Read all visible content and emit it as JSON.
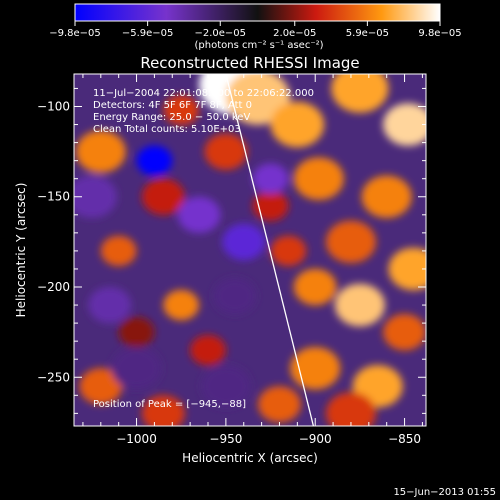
{
  "chart_data": {
    "type": "heatmap",
    "title": "Reconstructed RHESSI Image",
    "xlabel": "Heliocentric X (arcsec)",
    "ylabel": "Heliocentric Y (arcsec)",
    "xlim": [
      -1035,
      -838
    ],
    "ylim": [
      -277,
      -82
    ],
    "x_ticks": [
      -1000,
      -950,
      -900,
      -850
    ],
    "x_tick_labels": [
      "−1000",
      "−950",
      "−900",
      "−850"
    ],
    "y_ticks": [
      -100,
      -150,
      -200,
      -250
    ],
    "y_tick_labels": [
      "−100",
      "−150",
      "−200",
      "−250"
    ],
    "colorbar": {
      "range": [
        -9.8e-05,
        9.8e-05
      ],
      "tick_values": [
        -9.8e-05,
        -5.9e-05,
        -2e-05,
        2e-05,
        5.9e-05,
        9.8e-05
      ],
      "tick_labels": [
        "−9.8e−05",
        "−5.9e−05",
        "−2.0e−05",
        "2.0e−05",
        "5.9e−05",
        "9.8e−05"
      ],
      "units_label": "(photons cm⁻² s⁻¹ asec⁻²)"
    },
    "annotations": [
      "11−Jul−2004 22:01:08.000 to 22:06:22.000",
      "Detectors: 4F 5F 6F 7F 8F, Att 0",
      "Energy Range: 25.0 − 50.0 keV",
      "Clean    Total counts: 5.10E+03"
    ],
    "peak_label": "Position of Peak = [−945,−88]",
    "peak_position": [
      -945,
      -88
    ],
    "limb_line": [
      [
        -950,
        -82
      ],
      [
        -901,
        -277
      ]
    ],
    "blobs": [
      {
        "x": -1020,
        "y": -125,
        "v": 6e-05,
        "r": 14
      },
      {
        "x": -1010,
        "y": -180,
        "v": 5e-05,
        "r": 10
      },
      {
        "x": -975,
        "y": -102,
        "v": 4e-05,
        "r": 10
      },
      {
        "x": -985,
        "y": -150,
        "v": 3e-05,
        "r": 12
      },
      {
        "x": -945,
        "y": -88,
        "v": 9.8e-05,
        "r": 20
      },
      {
        "x": -932,
        "y": -95,
        "v": 8e-05,
        "r": 18
      },
      {
        "x": -950,
        "y": -125,
        "v": 4e-05,
        "r": 12
      },
      {
        "x": -910,
        "y": -110,
        "v": 7e-05,
        "r": 15
      },
      {
        "x": -898,
        "y": -140,
        "v": 6e-05,
        "r": 14
      },
      {
        "x": -875,
        "y": -90,
        "v": 7e-05,
        "r": 16
      },
      {
        "x": -848,
        "y": -110,
        "v": 8.5e-05,
        "r": 14
      },
      {
        "x": -860,
        "y": -150,
        "v": 6e-05,
        "r": 14
      },
      {
        "x": -880,
        "y": -175,
        "v": 5e-05,
        "r": 14
      },
      {
        "x": -845,
        "y": -190,
        "v": 7e-05,
        "r": 14
      },
      {
        "x": -900,
        "y": -200,
        "v": 6e-05,
        "r": 12
      },
      {
        "x": -875,
        "y": -210,
        "v": 8e-05,
        "r": 14
      },
      {
        "x": -850,
        "y": -225,
        "v": 5e-05,
        "r": 12
      },
      {
        "x": -900,
        "y": -245,
        "v": 6e-05,
        "r": 14
      },
      {
        "x": -865,
        "y": -255,
        "v": 7e-05,
        "r": 14
      },
      {
        "x": -920,
        "y": -265,
        "v": 5e-05,
        "r": 12
      },
      {
        "x": -880,
        "y": -270,
        "v": 4e-05,
        "r": 14
      },
      {
        "x": -1020,
        "y": -255,
        "v": 5e-05,
        "r": 12
      },
      {
        "x": -985,
        "y": -270,
        "v": 4e-05,
        "r": 12
      },
      {
        "x": -975,
        "y": -210,
        "v": 6e-05,
        "r": 10
      },
      {
        "x": -960,
        "y": -235,
        "v": 3e-05,
        "r": 10
      },
      {
        "x": -1000,
        "y": -225,
        "v": 2e-05,
        "r": 10
      },
      {
        "x": -925,
        "y": -155,
        "v": 3e-05,
        "r": 10
      },
      {
        "x": -915,
        "y": -180,
        "v": 4e-05,
        "r": 10
      },
      {
        "x": -990,
        "y": -130,
        "v": -9.8e-05,
        "r": 10
      },
      {
        "x": -1025,
        "y": -150,
        "v": -4e-05,
        "r": 14
      },
      {
        "x": -965,
        "y": -160,
        "v": -5e-05,
        "r": 12
      },
      {
        "x": -940,
        "y": -175,
        "v": -6e-05,
        "r": 12
      },
      {
        "x": -925,
        "y": -140,
        "v": -5e-05,
        "r": 10
      },
      {
        "x": -1015,
        "y": -210,
        "v": -4e-05,
        "r": 12
      },
      {
        "x": -945,
        "y": -205,
        "v": -3e-05,
        "r": 12
      },
      {
        "x": -1000,
        "y": -245,
        "v": -3e-05,
        "r": 14
      },
      {
        "x": -950,
        "y": -255,
        "v": -3e-05,
        "r": 14
      }
    ]
  },
  "footer": {
    "timestamp": "15−Jun−2013 01:55"
  }
}
